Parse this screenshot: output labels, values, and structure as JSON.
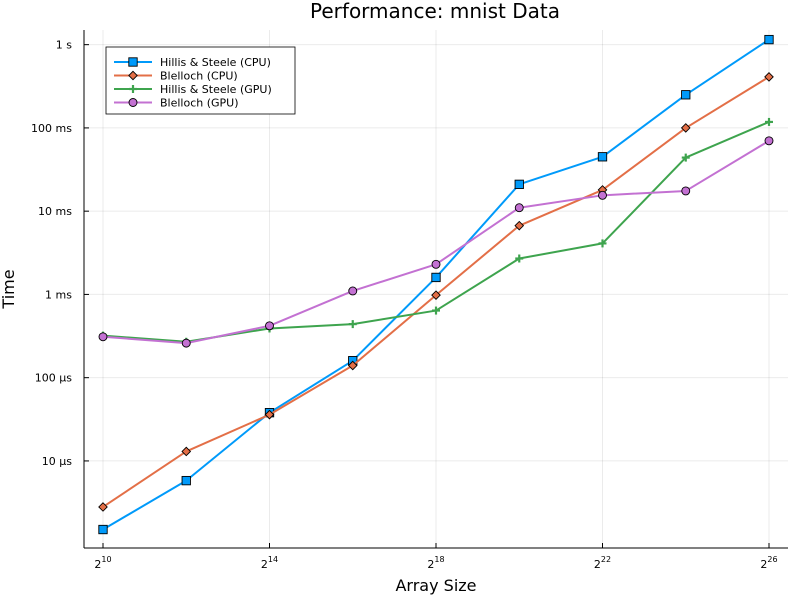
{
  "chart_data": {
    "type": "line",
    "title": "Performance: mnist Data",
    "xlabel": "Array Size",
    "ylabel": "Time",
    "xscale": "log2",
    "yscale": "log10",
    "x": [
      1024,
      4096,
      16384,
      65536,
      262144,
      1048576,
      4194304,
      16777216,
      67108864
    ],
    "xticks": [
      {
        "value": 1024,
        "base": "2",
        "exp": "10"
      },
      {
        "value": 16384,
        "base": "2",
        "exp": "14"
      },
      {
        "value": 262144,
        "base": "2",
        "exp": "18"
      },
      {
        "value": 4194304,
        "base": "2",
        "exp": "22"
      },
      {
        "value": 67108864,
        "base": "2",
        "exp": "26"
      }
    ],
    "yticks": [
      {
        "value": 1e-05,
        "label": "10 µs"
      },
      {
        "value": 0.0001,
        "label": "100 µs"
      },
      {
        "value": 0.001,
        "label": "1 ms"
      },
      {
        "value": 0.01,
        "label": "10 ms"
      },
      {
        "value": 0.1,
        "label": "100 ms"
      },
      {
        "value": 1,
        "label": "1 s"
      }
    ],
    "xlim": [
      1024,
      67108864
    ],
    "ylim": [
      9e-07,
      1.5
    ],
    "grid": true,
    "legend_position": "top-left",
    "series": [
      {
        "name": "Hillis & Steele (CPU)",
        "color": "#009AFA",
        "marker": "square",
        "values": [
          1.5e-06,
          5.8e-06,
          3.8e-05,
          0.00016,
          0.0016,
          0.021,
          0.045,
          0.25,
          1.15
        ]
      },
      {
        "name": "Blelloch (CPU)",
        "color": "#E36F47",
        "marker": "diamond",
        "values": [
          2.8e-06,
          1.3e-05,
          3.6e-05,
          0.00014,
          0.00098,
          0.0067,
          0.018,
          0.1,
          0.41
        ]
      },
      {
        "name": "Hillis & Steele (GPU)",
        "color": "#3EA44E",
        "marker": "cross",
        "values": [
          0.00032,
          0.00027,
          0.00039,
          0.00044,
          0.00064,
          0.0027,
          0.0041,
          0.044,
          0.118
        ]
      },
      {
        "name": "Blelloch (GPU)",
        "color": "#C371D2",
        "marker": "circle",
        "values": [
          0.00031,
          0.00026,
          0.00042,
          0.0011,
          0.0023,
          0.011,
          0.0155,
          0.0175,
          0.07
        ]
      }
    ]
  }
}
